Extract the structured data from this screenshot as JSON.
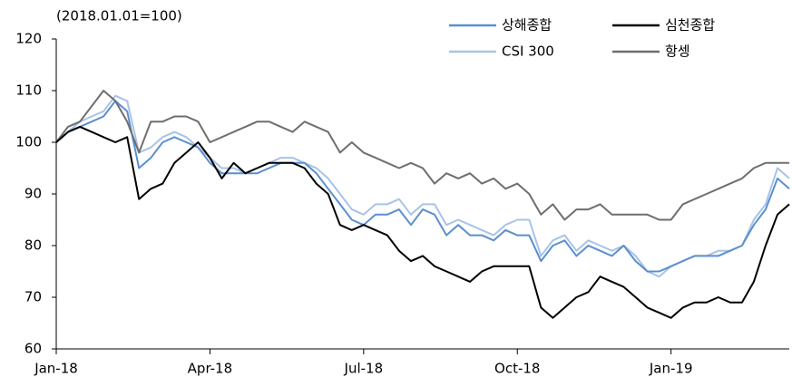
{
  "chart_data": {
    "type": "line",
    "subtitle": "(2018.01.01=100)",
    "categories": [
      "Jan-18",
      null,
      null,
      null,
      null,
      null,
      null,
      null,
      null,
      null,
      null,
      null,
      null,
      "Apr-18",
      null,
      null,
      null,
      null,
      null,
      null,
      null,
      null,
      null,
      null,
      null,
      null,
      "Jul-18",
      null,
      null,
      null,
      null,
      null,
      null,
      null,
      null,
      null,
      null,
      null,
      null,
      "Oct-18",
      null,
      null,
      null,
      null,
      null,
      null,
      null,
      null,
      null,
      null,
      null,
      null,
      "Jan-19",
      null,
      null,
      null,
      null,
      null,
      null,
      null,
      null,
      null,
      null
    ],
    "series": [
      {
        "name": "상해종합",
        "color": "#5b8fd0",
        "values": [
          100,
          102,
          103,
          104,
          105,
          108,
          106,
          95,
          97,
          100,
          101,
          100,
          99,
          96,
          94,
          94,
          94,
          94,
          95,
          96,
          96,
          96,
          94,
          91,
          88,
          85,
          84,
          86,
          86,
          87,
          84,
          87,
          86,
          82,
          84,
          82,
          82,
          81,
          83,
          82,
          82,
          77,
          80,
          81,
          78,
          80,
          79,
          78,
          80,
          77,
          75,
          75,
          76,
          77,
          78,
          78,
          78,
          79,
          80,
          84,
          87,
          93,
          91
        ]
      },
      {
        "name": "심천종합",
        "color": "#000000",
        "values": [
          100,
          102,
          103,
          102,
          101,
          100,
          101,
          89,
          91,
          92,
          96,
          98,
          100,
          97,
          93,
          96,
          94,
          95,
          96,
          96,
          96,
          95,
          92,
          90,
          84,
          83,
          84,
          83,
          82,
          79,
          77,
          78,
          76,
          75,
          74,
          73,
          75,
          76,
          76,
          76,
          76,
          68,
          66,
          68,
          70,
          71,
          74,
          73,
          72,
          70,
          68,
          67,
          66,
          68,
          69,
          69,
          70,
          69,
          69,
          73,
          80,
          86,
          88
        ]
      },
      {
        "name": "CSI 300",
        "color": "#a8c3e6",
        "values": [
          100,
          102,
          104,
          105,
          106,
          109,
          108,
          98,
          99,
          101,
          102,
          101,
          99,
          97,
          95,
          95,
          94,
          95,
          96,
          97,
          97,
          96,
          95,
          93,
          90,
          87,
          86,
          88,
          88,
          89,
          86,
          88,
          88,
          84,
          85,
          84,
          83,
          82,
          84,
          85,
          85,
          78,
          81,
          82,
          79,
          81,
          80,
          79,
          80,
          78,
          75,
          74,
          76,
          77,
          78,
          78,
          79,
          79,
          80,
          85,
          88,
          95,
          93
        ]
      },
      {
        "name": "항셍",
        "color": "#6e6e6e",
        "values": [
          100,
          103,
          104,
          107,
          110,
          108,
          104,
          98,
          104,
          104,
          105,
          105,
          104,
          100,
          101,
          102,
          103,
          104,
          104,
          103,
          102,
          104,
          103,
          102,
          98,
          100,
          98,
          97,
          96,
          95,
          96,
          95,
          92,
          94,
          93,
          94,
          92,
          93,
          91,
          92,
          90,
          86,
          88,
          85,
          87,
          87,
          88,
          86,
          86,
          86,
          86,
          85,
          85,
          88,
          89,
          90,
          91,
          92,
          93,
          95,
          96,
          96,
          96
        ]
      }
    ],
    "ylim": [
      60,
      120
    ],
    "yticks": [
      60,
      70,
      80,
      90,
      100,
      110,
      120
    ],
    "grid": false
  }
}
